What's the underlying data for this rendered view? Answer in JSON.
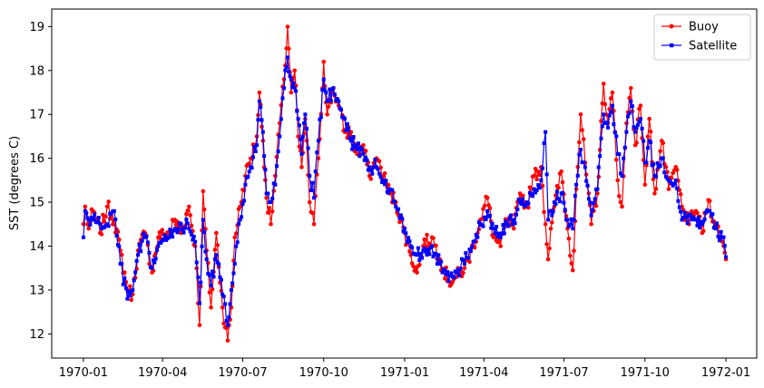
{
  "chart_data": {
    "type": "line",
    "title": "",
    "xlabel": "",
    "ylabel": "SST (degrees C)",
    "xlim": [
      "1969-11-26",
      "1972-02-05"
    ],
    "ylim": [
      11.45,
      19.4
    ],
    "x_ticks": [
      "1970-01",
      "1970-04",
      "1970-07",
      "1970-10",
      "1971-01",
      "1971-04",
      "1971-07",
      "1971-10",
      "1972-01"
    ],
    "y_ticks": [
      12,
      13,
      14,
      15,
      16,
      17,
      18,
      19
    ],
    "grid": false,
    "legend": "top-right",
    "series": [
      {
        "name": "Buoy",
        "color": "#ff0000",
        "marker": "circle",
        "keypoints": [
          [
            "1970-01-01",
            14.5
          ],
          [
            "1970-01-03",
            14.9
          ],
          [
            "1970-01-07",
            14.4
          ],
          [
            "1970-01-12",
            14.8
          ],
          [
            "1970-01-20",
            14.3
          ],
          [
            "1970-01-28",
            14.9
          ],
          [
            "1970-02-05",
            14.6
          ],
          [
            "1970-02-12",
            13.9
          ],
          [
            "1970-02-20",
            13.0
          ],
          [
            "1970-02-26",
            12.9
          ],
          [
            "1970-03-04",
            13.9
          ],
          [
            "1970-03-12",
            14.3
          ],
          [
            "1970-03-20",
            13.4
          ],
          [
            "1970-03-27",
            14.2
          ],
          [
            "1970-04-08",
            14.3
          ],
          [
            "1970-04-15",
            14.6
          ],
          [
            "1970-04-22",
            14.3
          ],
          [
            "1970-05-01",
            14.9
          ],
          [
            "1970-05-08",
            14.0
          ],
          [
            "1970-05-13",
            12.2
          ],
          [
            "1970-05-17",
            15.25
          ],
          [
            "1970-05-21",
            13.9
          ],
          [
            "1970-05-26",
            12.6
          ],
          [
            "1970-06-01",
            14.3
          ],
          [
            "1970-06-08",
            12.6
          ],
          [
            "1970-06-14",
            11.85
          ],
          [
            "1970-06-18",
            12.6
          ],
          [
            "1970-06-22",
            14.2
          ],
          [
            "1970-06-28",
            14.9
          ],
          [
            "1970-07-04",
            15.6
          ],
          [
            "1970-07-10",
            16.0
          ],
          [
            "1970-07-17",
            16.5
          ],
          [
            "1970-07-20",
            17.5
          ],
          [
            "1970-07-24",
            16.4
          ],
          [
            "1970-07-28",
            15.1
          ],
          [
            "1970-08-02",
            14.5
          ],
          [
            "1970-08-07",
            15.6
          ],
          [
            "1970-08-12",
            16.8
          ],
          [
            "1970-08-17",
            17.8
          ],
          [
            "1970-08-21",
            19.0
          ],
          [
            "1970-08-25",
            17.5
          ],
          [
            "1970-08-29",
            18.0
          ],
          [
            "1970-09-02",
            16.5
          ],
          [
            "1970-09-06",
            15.8
          ],
          [
            "1970-09-10",
            16.9
          ],
          [
            "1970-09-15",
            15.0
          ],
          [
            "1970-09-20",
            14.5
          ],
          [
            "1970-09-25",
            16.0
          ],
          [
            "1970-10-01",
            18.2
          ],
          [
            "1970-10-05",
            17.0
          ],
          [
            "1970-10-12",
            17.6
          ],
          [
            "1970-10-18",
            17.2
          ],
          [
            "1970-10-25",
            16.6
          ],
          [
            "1970-11-01",
            16.6
          ],
          [
            "1970-11-08",
            16.1
          ],
          [
            "1970-11-15",
            16.3
          ],
          [
            "1970-11-22",
            15.6
          ],
          [
            "1970-11-30",
            16.0
          ],
          [
            "1970-12-08",
            15.6
          ],
          [
            "1970-12-15",
            15.2
          ],
          [
            "1970-12-22",
            15.0
          ],
          [
            "1971-01-01",
            14.3
          ],
          [
            "1971-01-08",
            13.8
          ],
          [
            "1971-01-15",
            13.4
          ],
          [
            "1971-01-22",
            14.0
          ],
          [
            "1971-02-01",
            14.2
          ],
          [
            "1971-02-10",
            13.7
          ],
          [
            "1971-02-20",
            13.2
          ],
          [
            "1971-03-01",
            13.3
          ],
          [
            "1971-03-10",
            13.5
          ],
          [
            "1971-03-20",
            14.0
          ],
          [
            "1971-03-28",
            14.6
          ],
          [
            "1971-04-05",
            15.1
          ],
          [
            "1971-04-12",
            14.2
          ],
          [
            "1971-04-20",
            14.0
          ],
          [
            "1971-04-27",
            14.6
          ],
          [
            "1971-05-05",
            14.4
          ],
          [
            "1971-05-12",
            15.2
          ],
          [
            "1971-05-20",
            14.9
          ],
          [
            "1971-05-28",
            15.6
          ],
          [
            "1971-06-05",
            15.8
          ],
          [
            "1971-06-10",
            14.5
          ],
          [
            "1971-06-13",
            13.7
          ],
          [
            "1971-06-16",
            14.4
          ],
          [
            "1971-06-20",
            14.9
          ],
          [
            "1971-06-28",
            15.7
          ],
          [
            "1971-07-05",
            14.4
          ],
          [
            "1971-07-11",
            13.45
          ],
          [
            "1971-07-15",
            15.3
          ],
          [
            "1971-07-20",
            17.0
          ],
          [
            "1971-07-25",
            15.9
          ],
          [
            "1971-08-01",
            14.5
          ],
          [
            "1971-08-08",
            15.2
          ],
          [
            "1971-08-15",
            17.7
          ],
          [
            "1971-08-20",
            16.8
          ],
          [
            "1971-08-25",
            17.5
          ],
          [
            "1971-08-31",
            15.5
          ],
          [
            "1971-09-05",
            14.9
          ],
          [
            "1971-09-10",
            16.8
          ],
          [
            "1971-09-15",
            17.6
          ],
          [
            "1971-09-20",
            16.3
          ],
          [
            "1971-09-26",
            17.2
          ],
          [
            "1971-10-01",
            15.4
          ],
          [
            "1971-10-06",
            16.9
          ],
          [
            "1971-10-12",
            15.2
          ],
          [
            "1971-10-20",
            16.4
          ],
          [
            "1971-10-28",
            15.3
          ],
          [
            "1971-11-05",
            15.8
          ],
          [
            "1971-11-12",
            14.9
          ],
          [
            "1971-11-20",
            14.5
          ],
          [
            "1971-11-28",
            14.8
          ],
          [
            "1971-12-05",
            14.3
          ],
          [
            "1971-12-12",
            15.05
          ],
          [
            "1971-12-20",
            14.5
          ],
          [
            "1971-12-28",
            14.1
          ],
          [
            "1972-01-01",
            13.7
          ]
        ]
      },
      {
        "name": "Satellite",
        "color": "#0000ff",
        "marker": "square",
        "keypoints": [
          [
            "1970-01-01",
            14.2
          ],
          [
            "1970-01-03",
            14.8
          ],
          [
            "1970-01-07",
            14.6
          ],
          [
            "1970-01-12",
            14.6
          ],
          [
            "1970-01-20",
            14.5
          ],
          [
            "1970-01-28",
            14.5
          ],
          [
            "1970-02-05",
            14.8
          ],
          [
            "1970-02-12",
            13.6
          ],
          [
            "1970-02-20",
            12.8
          ],
          [
            "1970-02-26",
            13.0
          ],
          [
            "1970-03-04",
            13.8
          ],
          [
            "1970-03-12",
            14.2
          ],
          [
            "1970-03-20",
            13.5
          ],
          [
            "1970-03-27",
            14.0
          ],
          [
            "1970-04-08",
            14.2
          ],
          [
            "1970-04-15",
            14.4
          ],
          [
            "1970-04-22",
            14.5
          ],
          [
            "1970-05-01",
            14.4
          ],
          [
            "1970-05-08",
            14.1
          ],
          [
            "1970-05-13",
            12.7
          ],
          [
            "1970-05-17",
            14.6
          ],
          [
            "1970-05-21",
            13.7
          ],
          [
            "1970-05-26",
            13.1
          ],
          [
            "1970-06-01",
            13.8
          ],
          [
            "1970-06-08",
            12.9
          ],
          [
            "1970-06-14",
            12.2
          ],
          [
            "1970-06-18",
            13.0
          ],
          [
            "1970-06-22",
            13.6
          ],
          [
            "1970-06-28",
            14.6
          ],
          [
            "1970-07-04",
            15.4
          ],
          [
            "1970-07-10",
            15.8
          ],
          [
            "1970-07-17",
            16.3
          ],
          [
            "1970-07-20",
            17.3
          ],
          [
            "1970-07-24",
            16.6
          ],
          [
            "1970-07-28",
            15.2
          ],
          [
            "1970-08-02",
            15.0
          ],
          [
            "1970-08-07",
            15.4
          ],
          [
            "1970-08-12",
            16.5
          ],
          [
            "1970-08-17",
            17.6
          ],
          [
            "1970-08-21",
            18.3
          ],
          [
            "1970-08-25",
            17.8
          ],
          [
            "1970-08-29",
            17.6
          ],
          [
            "1970-09-02",
            16.9
          ],
          [
            "1970-09-06",
            16.1
          ],
          [
            "1970-09-10",
            17.0
          ],
          [
            "1970-09-15",
            15.6
          ],
          [
            "1970-09-20",
            15.1
          ],
          [
            "1970-09-25",
            16.4
          ],
          [
            "1970-10-01",
            17.8
          ],
          [
            "1970-10-05",
            17.3
          ],
          [
            "1970-10-12",
            17.6
          ],
          [
            "1970-10-18",
            17.3
          ],
          [
            "1970-10-25",
            16.9
          ],
          [
            "1970-11-01",
            16.4
          ],
          [
            "1970-11-08",
            16.2
          ],
          [
            "1970-11-15",
            16.1
          ],
          [
            "1970-11-22",
            15.8
          ],
          [
            "1970-11-30",
            15.8
          ],
          [
            "1970-12-08",
            15.5
          ],
          [
            "1970-12-15",
            15.3
          ],
          [
            "1970-12-22",
            14.9
          ],
          [
            "1971-01-01",
            14.4
          ],
          [
            "1971-01-08",
            14.0
          ],
          [
            "1971-01-15",
            13.8
          ],
          [
            "1971-01-22",
            13.9
          ],
          [
            "1971-02-01",
            14.0
          ],
          [
            "1971-02-10",
            13.6
          ],
          [
            "1971-02-20",
            13.2
          ],
          [
            "1971-03-01",
            13.4
          ],
          [
            "1971-03-10",
            13.6
          ],
          [
            "1971-03-20",
            14.1
          ],
          [
            "1971-03-28",
            14.5
          ],
          [
            "1971-04-05",
            14.8
          ],
          [
            "1971-04-12",
            14.4
          ],
          [
            "1971-04-20",
            14.2
          ],
          [
            "1971-04-27",
            14.5
          ],
          [
            "1971-05-05",
            14.6
          ],
          [
            "1971-05-12",
            15.0
          ],
          [
            "1971-05-20",
            15.0
          ],
          [
            "1971-05-28",
            15.3
          ],
          [
            "1971-06-05",
            15.5
          ],
          [
            "1971-06-10",
            16.6
          ],
          [
            "1971-06-13",
            14.6
          ],
          [
            "1971-06-16",
            14.8
          ],
          [
            "1971-06-20",
            15.0
          ],
          [
            "1971-06-28",
            15.2
          ],
          [
            "1971-07-05",
            14.6
          ],
          [
            "1971-07-11",
            14.4
          ],
          [
            "1971-07-15",
            15.4
          ],
          [
            "1971-07-20",
            16.2
          ],
          [
            "1971-07-25",
            15.8
          ],
          [
            "1971-08-01",
            14.7
          ],
          [
            "1971-08-08",
            15.3
          ],
          [
            "1971-08-15",
            17.0
          ],
          [
            "1971-08-20",
            16.7
          ],
          [
            "1971-08-25",
            17.2
          ],
          [
            "1971-08-31",
            16.1
          ],
          [
            "1971-09-05",
            15.6
          ],
          [
            "1971-09-10",
            16.6
          ],
          [
            "1971-09-15",
            17.3
          ],
          [
            "1971-09-20",
            16.6
          ],
          [
            "1971-09-26",
            16.9
          ],
          [
            "1971-10-01",
            15.9
          ],
          [
            "1971-10-06",
            16.4
          ],
          [
            "1971-10-12",
            15.6
          ],
          [
            "1971-10-20",
            16.0
          ],
          [
            "1971-10-28",
            15.5
          ],
          [
            "1971-11-05",
            15.5
          ],
          [
            "1971-11-12",
            14.6
          ],
          [
            "1971-11-20",
            14.7
          ],
          [
            "1971-11-28",
            14.6
          ],
          [
            "1971-12-05",
            14.5
          ],
          [
            "1971-12-12",
            14.8
          ],
          [
            "1971-12-20",
            14.4
          ],
          [
            "1971-12-28",
            14.2
          ],
          [
            "1972-01-01",
            13.75
          ]
        ]
      }
    ]
  }
}
